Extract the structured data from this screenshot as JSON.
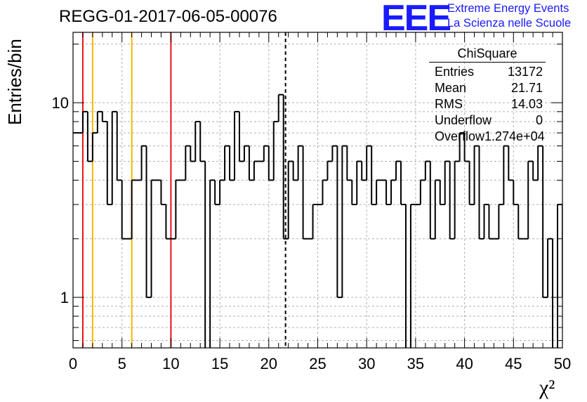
{
  "title": "REGG-01-2017-06-05-00076",
  "logo": {
    "mark": "EEE",
    "line1": "Extreme Energy Events",
    "line2": "La Scienza nelle Scuole",
    "color": "#1a1aff"
  },
  "stats": {
    "title": "ChiSquare",
    "rows": [
      {
        "label": "Entries",
        "value": "13172"
      },
      {
        "label": "Mean",
        "value": "21.71"
      },
      {
        "label": "RMS",
        "value": "14.03"
      },
      {
        "label": "Underflow",
        "value": "0"
      },
      {
        "label": "Overflow",
        "value": "1.274e+04"
      }
    ]
  },
  "chart_data": {
    "type": "histogram",
    "ylabel": "Entries/bin",
    "xlabel": "χ²",
    "xlim": [
      0,
      50
    ],
    "ylim": [
      0.55,
      23
    ],
    "yscale": "log",
    "grid": true,
    "bin_width": 0.5,
    "x_ticks": [
      "0",
      "5",
      "10",
      "15",
      "20",
      "25",
      "30",
      "35",
      "40",
      "45",
      "50"
    ],
    "y_ticks": [
      "1",
      "10"
    ],
    "counts": [
      7,
      7,
      9,
      5,
      7,
      9,
      8,
      3,
      9,
      4,
      2,
      2,
      4,
      4,
      6,
      1,
      4,
      4,
      3,
      2,
      2,
      4,
      4,
      6,
      5,
      8,
      5,
      0,
      4,
      3,
      4,
      6,
      4,
      9,
      5,
      6,
      4,
      5,
      5,
      6,
      4,
      8,
      11,
      2,
      5,
      4,
      6,
      2,
      2,
      3,
      3,
      4,
      5,
      6,
      1,
      6,
      4,
      3,
      5,
      4,
      6,
      3,
      4,
      4,
      3,
      4,
      5,
      3,
      0,
      3,
      3,
      4,
      5,
      2,
      4,
      3,
      5,
      2,
      5,
      7,
      5,
      3,
      6,
      2,
      3,
      2,
      2,
      3,
      6,
      4,
      3,
      2,
      2,
      5,
      4,
      6,
      1,
      2,
      0,
      3,
      1,
      1,
      4
    ],
    "vertical_lines": [
      {
        "x": 1,
        "color": "#e8121a",
        "style": "solid"
      },
      {
        "x": 2,
        "color": "#f5b800",
        "style": "solid"
      },
      {
        "x": 6,
        "color": "#f5b800",
        "style": "solid"
      },
      {
        "x": 10,
        "color": "#e8121a",
        "style": "solid"
      },
      {
        "x": 21.71,
        "color": "#000000",
        "style": "dashed"
      }
    ]
  }
}
